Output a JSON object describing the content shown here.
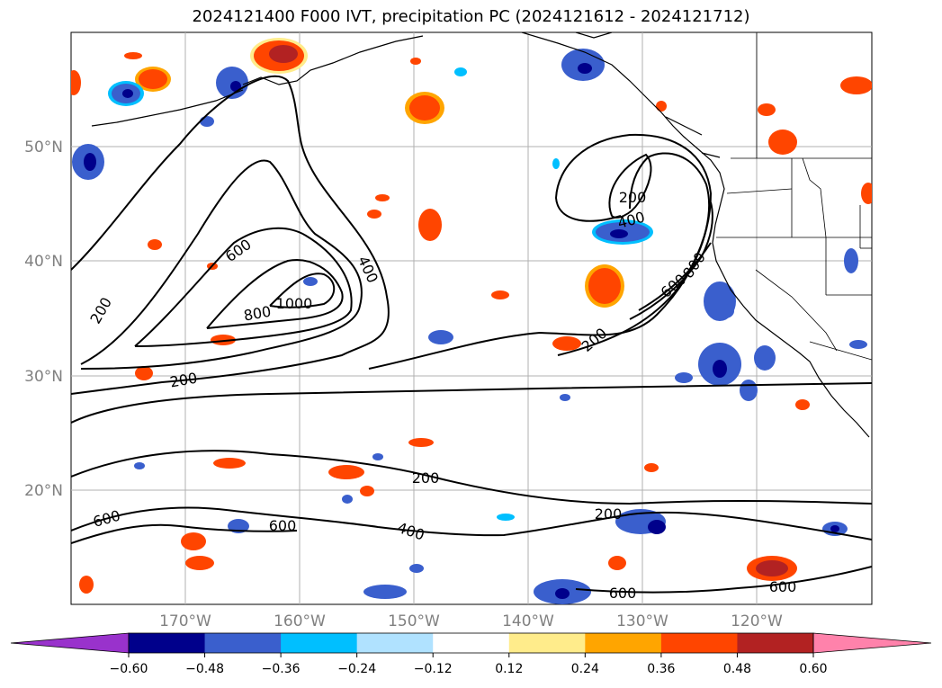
{
  "title": "2024121400 F000 IVT, precipitation PC (2024121612 - 2024121712)",
  "map": {
    "lat_labels": [
      "50°N",
      "40°N",
      "30°N",
      "20°N"
    ],
    "lon_labels": [
      "170°W",
      "160°W",
      "150°W",
      "140°W",
      "130°W",
      "120°W"
    ],
    "contour_labels": [
      {
        "text": "200",
        "name": "contour-label-200-a"
      },
      {
        "text": "600",
        "name": "contour-label-600-a"
      },
      {
        "text": "400",
        "name": "contour-label-400-a"
      },
      {
        "text": "800",
        "name": "contour-label-800-a"
      },
      {
        "text": "1000",
        "name": "contour-label-1000"
      },
      {
        "text": "200",
        "name": "contour-label-200-b"
      },
      {
        "text": "200",
        "name": "contour-label-200-c"
      },
      {
        "text": "400",
        "name": "contour-label-400-b"
      },
      {
        "text": "600",
        "name": "contour-label-600-b"
      },
      {
        "text": "800",
        "name": "contour-label-800-b"
      },
      {
        "text": "200",
        "name": "contour-label-200-d"
      },
      {
        "text": "200",
        "name": "contour-label-200-e"
      },
      {
        "text": "600",
        "name": "contour-label-600-c"
      },
      {
        "text": "600",
        "name": "contour-label-600-d"
      },
      {
        "text": "400",
        "name": "contour-label-400-c"
      },
      {
        "text": "200",
        "name": "contour-label-200-f"
      },
      {
        "text": "600",
        "name": "contour-label-600-e"
      },
      {
        "text": "600",
        "name": "contour-label-600-f"
      }
    ]
  },
  "colorbar": {
    "ticks": [
      "−0.60",
      "−0.48",
      "−0.36",
      "−0.24",
      "−0.12",
      "0.12",
      "0.24",
      "0.36",
      "0.48",
      "0.60"
    ],
    "colors": [
      "#9932cc",
      "#00008b",
      "#3a5fcd",
      "#00bfff",
      "#b0e2ff",
      "#ffffff",
      "#ffec8b",
      "#ffa500",
      "#ff4500",
      "#b22222",
      "#ff82ab"
    ]
  }
}
